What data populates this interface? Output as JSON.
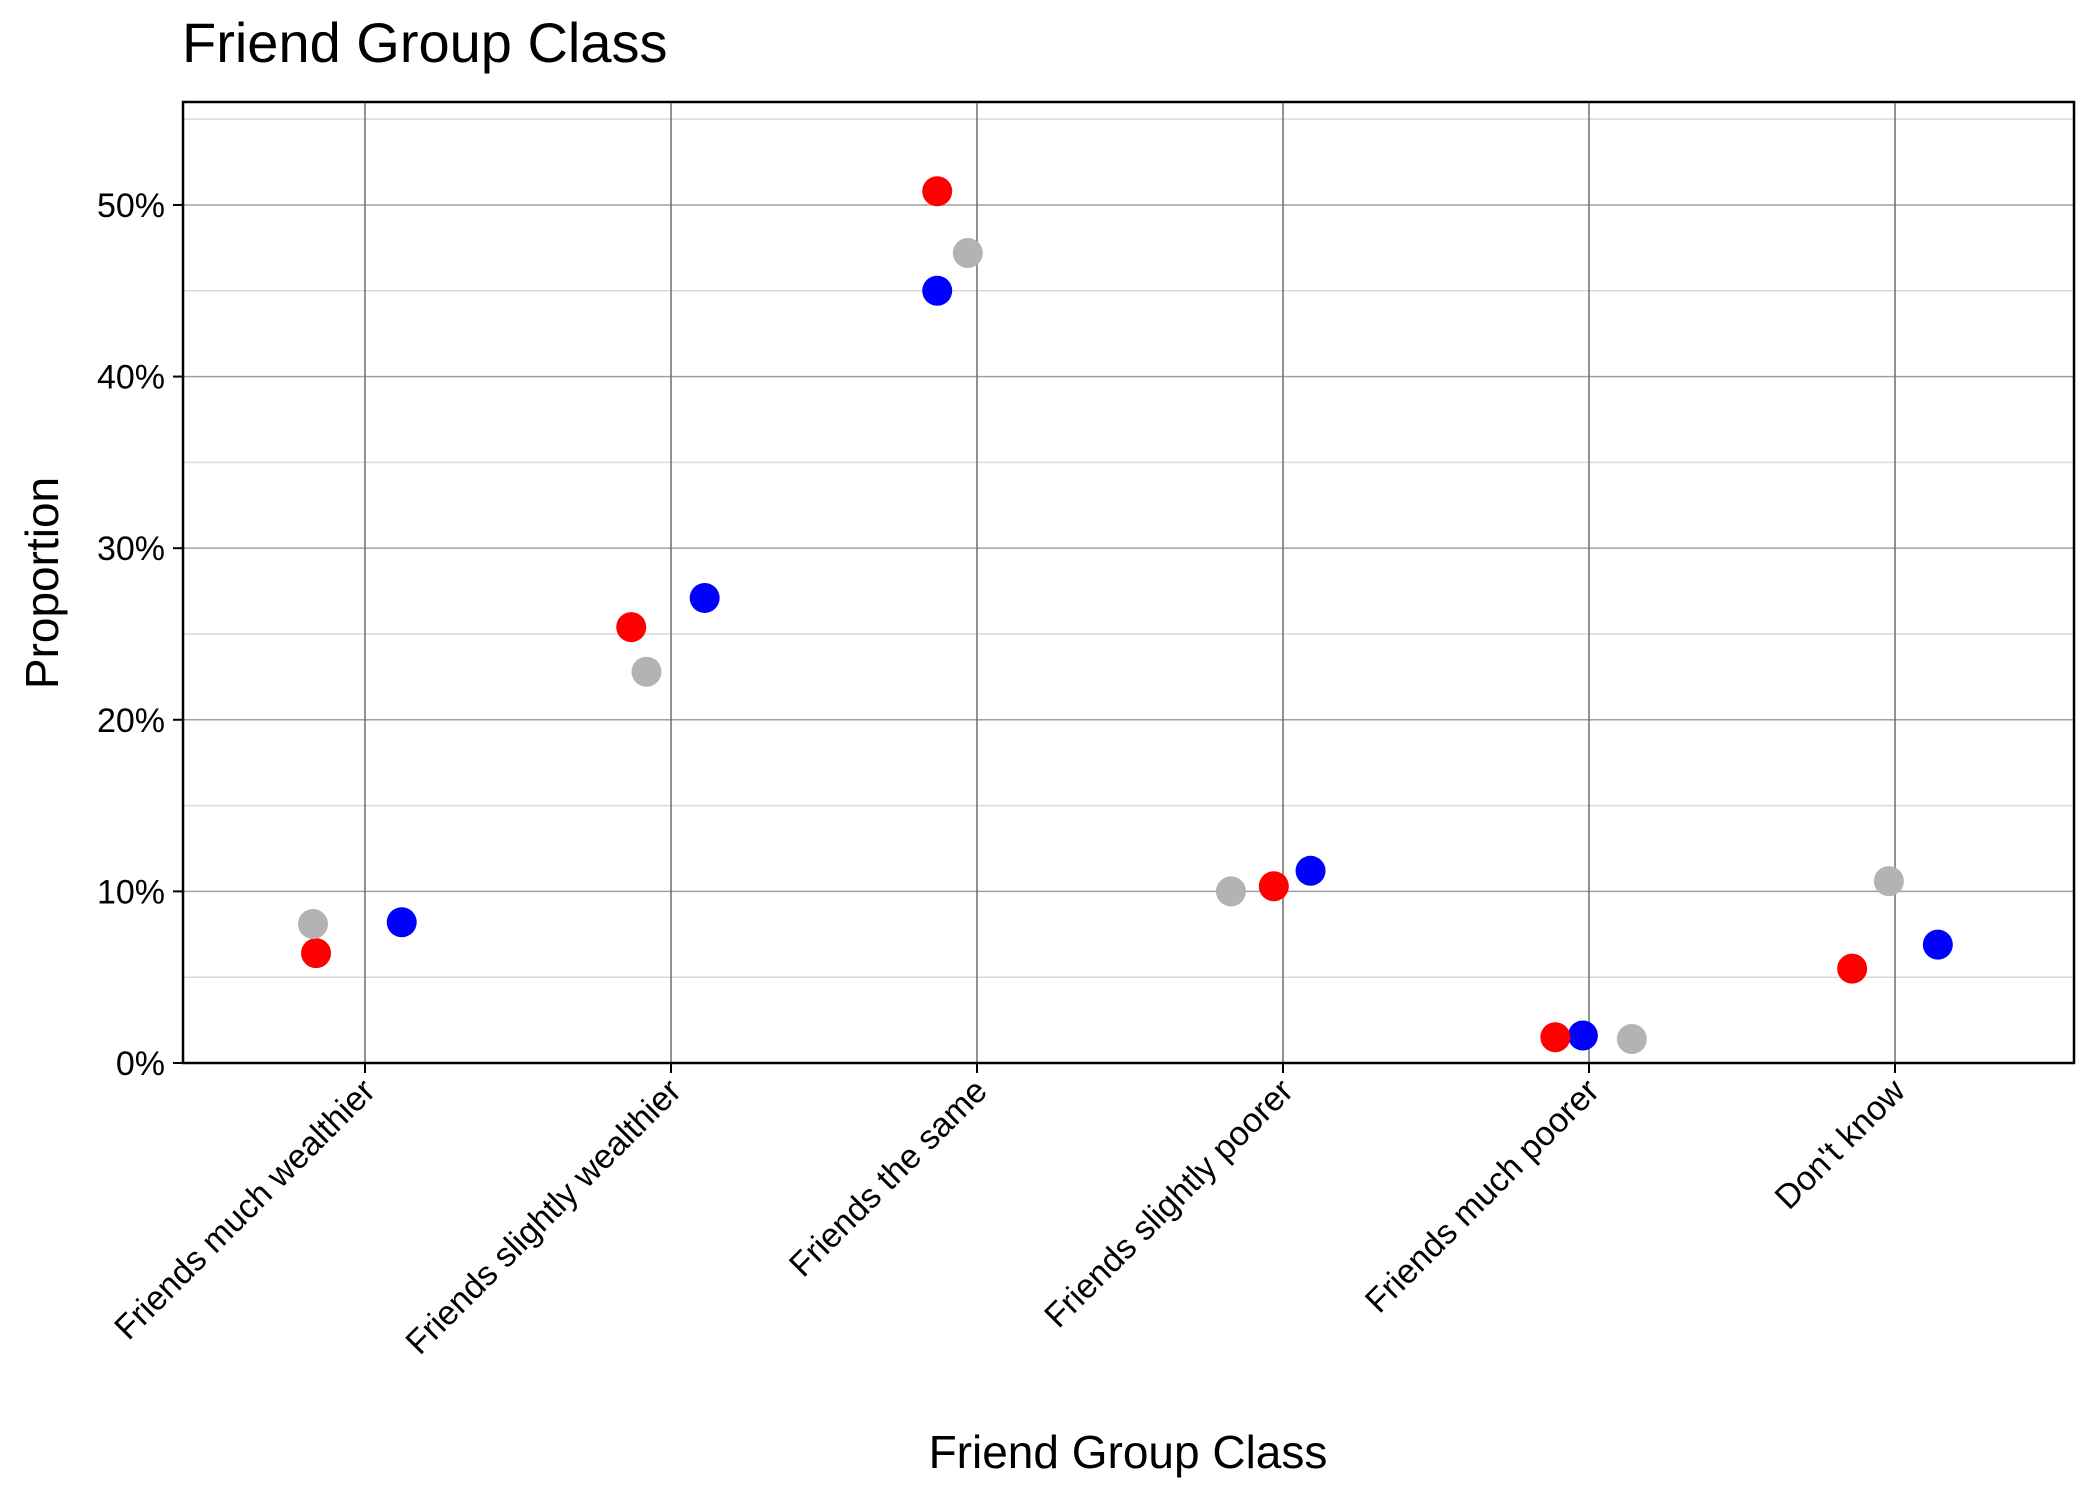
{
  "chart_data": {
    "type": "scatter",
    "title": "Friend Group Class",
    "xlabel": "Friend Group Class",
    "ylabel": "Proportion",
    "categories": [
      "Friends much wealthier",
      "Friends slightly wealthier",
      "Friends the same",
      "Friends slightly poorer",
      "Friends much poorer",
      "Don't know"
    ],
    "ylim": [
      0,
      0.56
    ],
    "yticks": [
      0,
      0.1,
      0.2,
      0.3,
      0.4,
      0.5
    ],
    "ytick_labels": [
      "0%",
      "10%",
      "20%",
      "30%",
      "40%",
      "50%"
    ],
    "grid": true,
    "series": [
      {
        "color": "#0000ff",
        "values": [
          0.082,
          0.271,
          0.45,
          0.112,
          0.016,
          0.069
        ],
        "jitter": [
          0.12,
          0.11,
          -0.13,
          0.09,
          -0.02,
          0.14
        ]
      },
      {
        "color": "#ff0000",
        "values": [
          0.064,
          0.254,
          0.508,
          0.103,
          0.015,
          0.055
        ],
        "jitter": [
          -0.16,
          -0.13,
          -0.13,
          -0.03,
          -0.11,
          -0.14
        ]
      },
      {
        "color": "#b3b3b3",
        "values": [
          0.081,
          0.228,
          0.472,
          0.1,
          0.014,
          0.106
        ],
        "jitter": [
          -0.17,
          -0.08,
          -0.03,
          -0.17,
          0.14,
          -0.02
        ]
      }
    ]
  }
}
